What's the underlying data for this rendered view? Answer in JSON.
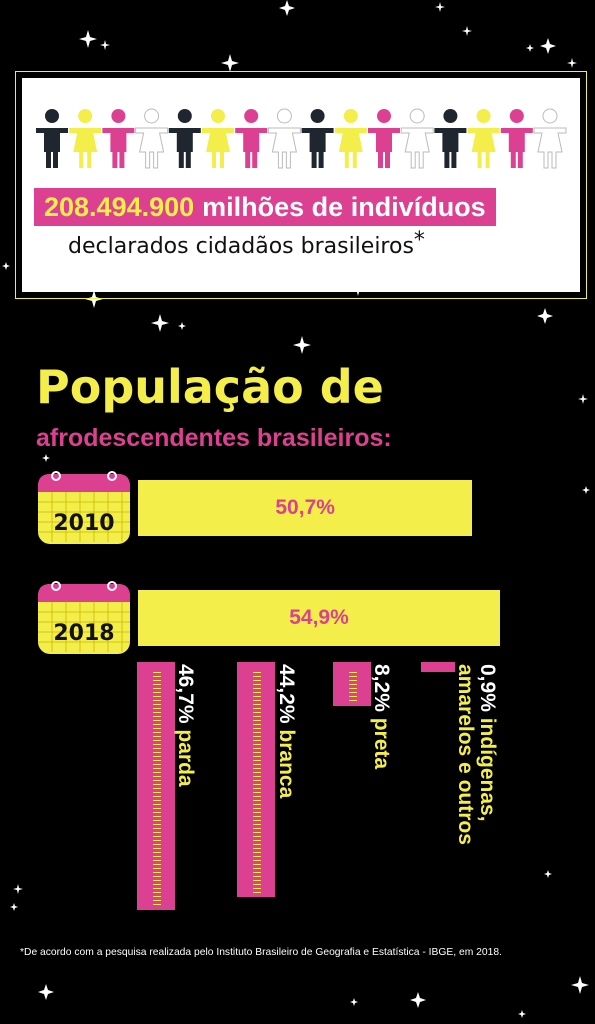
{
  "header": {
    "total_number": "208.494.900",
    "headline_rest": "milhões de indivíduos",
    "subline": "declarados cidadãos brasileiros",
    "asterisk": "*"
  },
  "title": "População de",
  "subtitle": "afrodescendentes brasileiros:",
  "years": [
    {
      "year": "2010",
      "value_label": "50,7%"
    },
    {
      "year": "2018",
      "value_label": "54,9%"
    }
  ],
  "breakdown": [
    {
      "pct": "46,7%",
      "label": "parda"
    },
    {
      "pct": "44,2%",
      "label": "branca"
    },
    {
      "pct": "8,2%",
      "label": "preta"
    },
    {
      "pct": "0,9%",
      "label": "indígenas, amarelos e outros"
    }
  ],
  "chart_data": {
    "type": "bar",
    "title": "População de afrodescendentes brasileiros:",
    "categories": [
      "2010",
      "2018"
    ],
    "values": [
      50.7,
      54.9
    ],
    "breakdown_2018": {
      "categories": [
        "parda",
        "branca",
        "preta",
        "indígenas, amarelos e outros"
      ],
      "values": [
        46.7,
        44.2,
        8.2,
        0.9
      ]
    }
  },
  "footnote": "*De acordo com a pesquisa realizada pelo Instituto Brasileiro de Geografia e Estatística  - IBGE, em 2018.",
  "colors": {
    "yellow": "#f3ee4a",
    "pink": "#dc4191",
    "dark": "#1f2630",
    "white": "#ffffff",
    "background": "#000000"
  }
}
